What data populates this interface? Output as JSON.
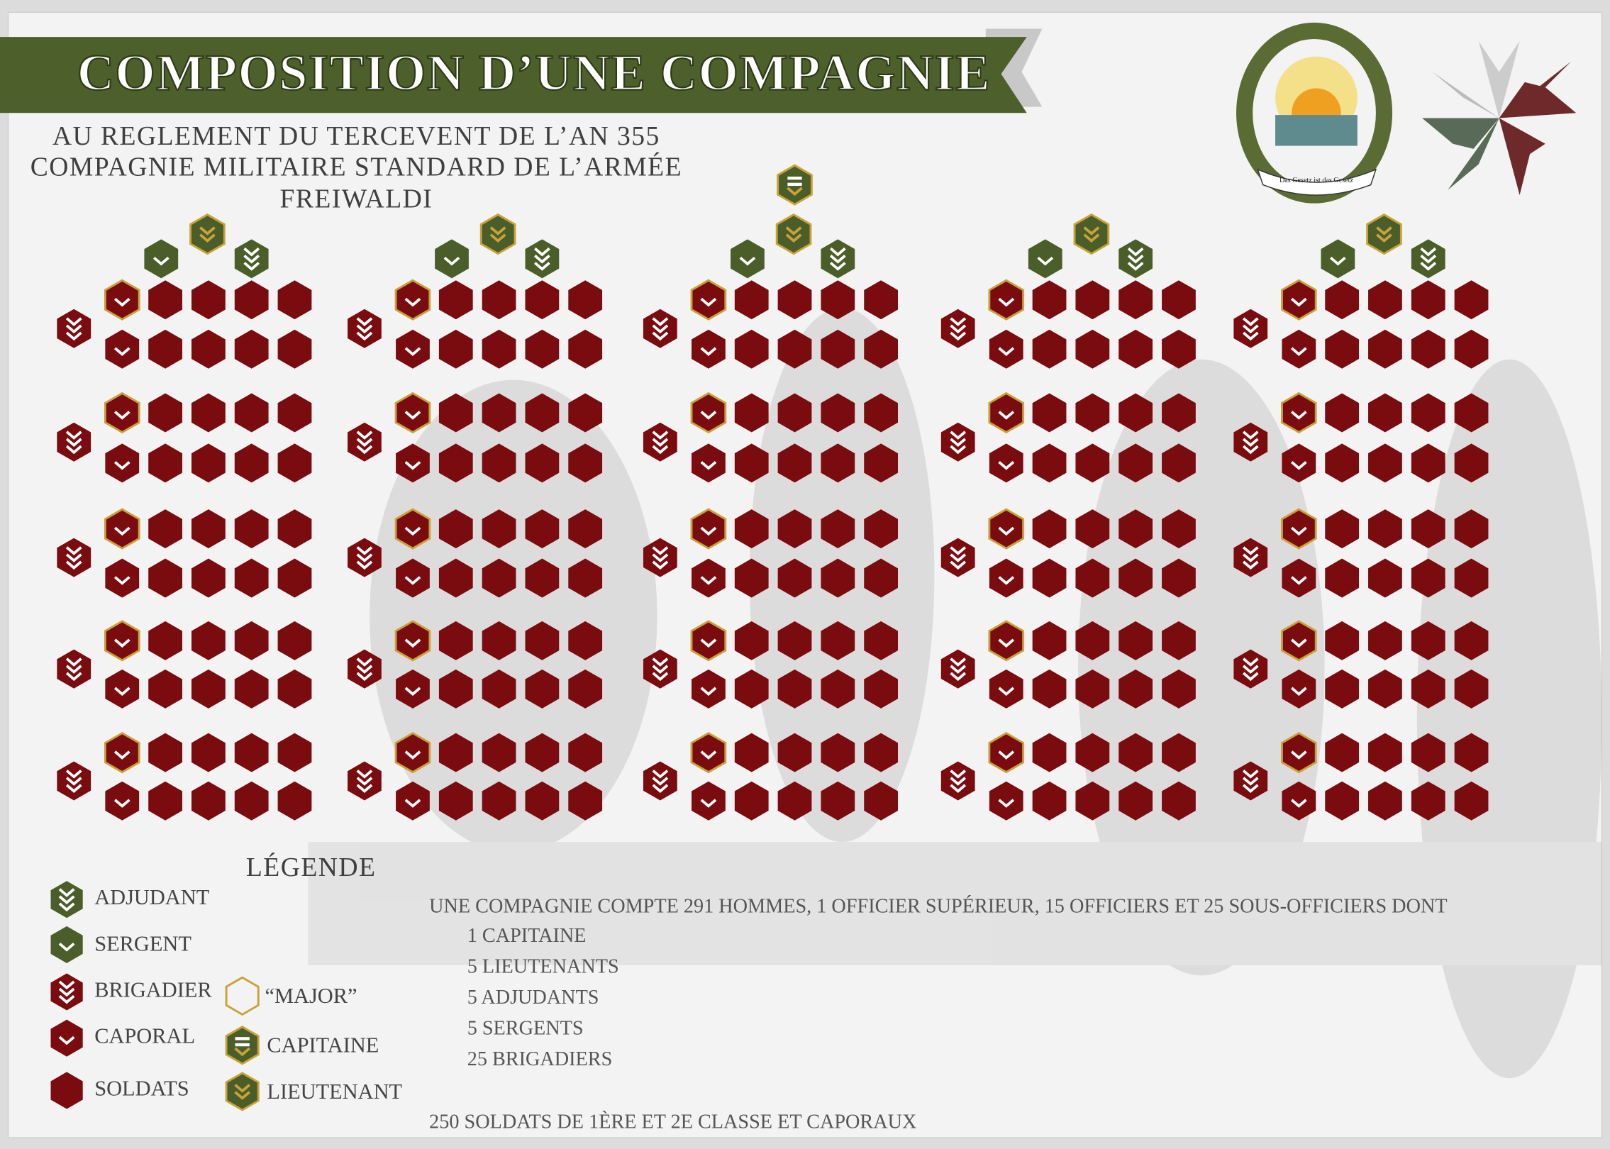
{
  "header": {
    "title": "COMPOSITION D’UNE COMPAGNIE",
    "subtitle_lines": [
      "AU REGLEMENT DU TERCEVENT DE L’AN 355",
      "COMPAGNIE MILITAIRE STANDARD DE L’ARMÉE",
      "FREIWALDI"
    ]
  },
  "emblem": {
    "motto": "Das Gesetz ist das Gesetz"
  },
  "legend": {
    "title": "LÉGENDE",
    "items": [
      "ADJUDANT",
      "SERGENT",
      "BRIGADIER",
      "CAPORAL",
      "SOLDATS",
      "“MAJOR”",
      "CAPITAINE",
      "LIEUTENANT"
    ]
  },
  "summary": {
    "intro": "UNE COMPAGNIE COMPTE 291 HOMMES, 1 OFFICIER SUPÉRIEUR, 15 OFFICIERS ET 25 SOUS-OFFICIERS DONT",
    "lines": [
      "1 CAPITAINE",
      "5 LIEUTENANTS",
      "5 ADJUDANTS",
      "5 SERGENTS",
      "25 BRIGADIERS"
    ],
    "footer": "250 SOLDATS DE 1ÈRE ET 2E CLASSE ET CAPORAUX"
  }
}
